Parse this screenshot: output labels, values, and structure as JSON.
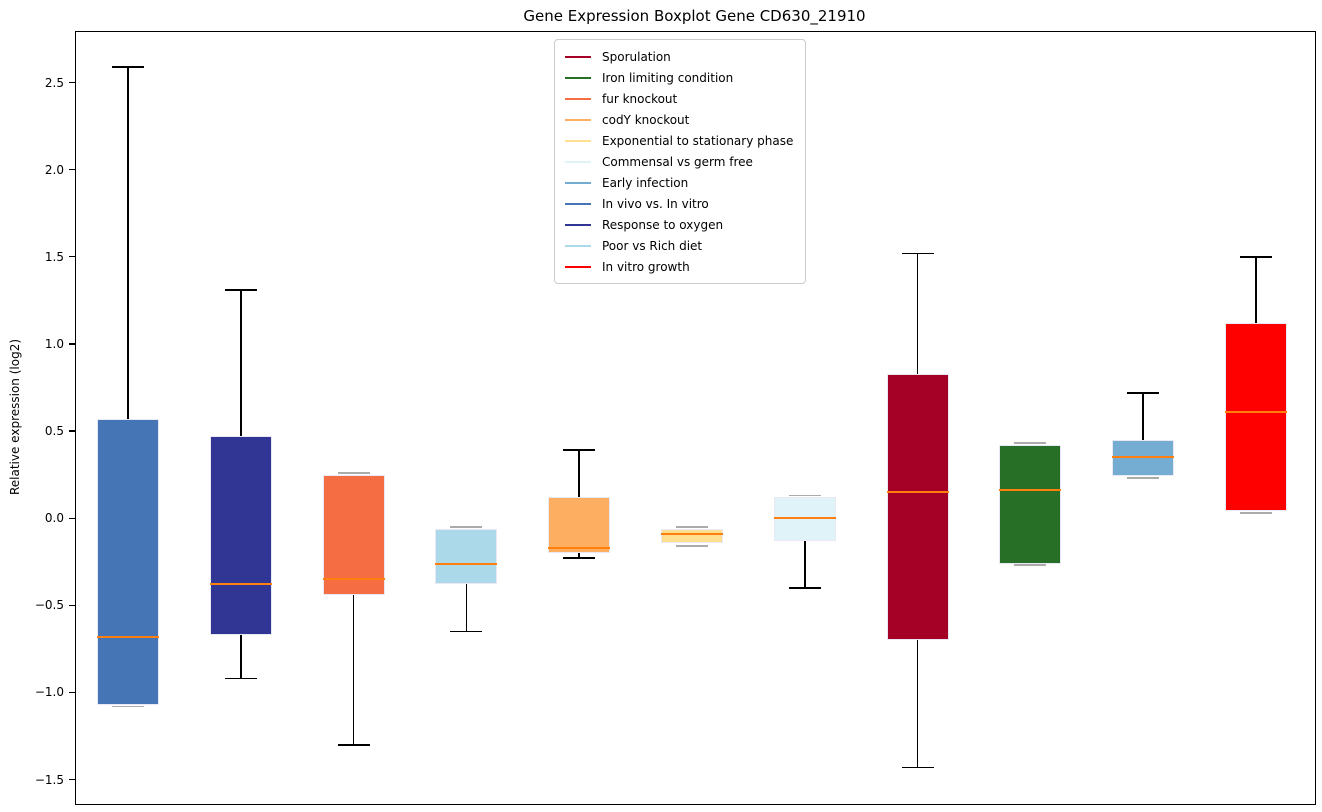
{
  "figure": {
    "title": "Gene Expression Boxplot Gene CD630_21910",
    "ylabel": "Relative expression (log2)"
  },
  "chart_data": {
    "type": "boxplot",
    "title": "Gene Expression Boxplot Gene CD630_21910",
    "xlabel": "",
    "ylabel": "Relative expression (log2)",
    "ylim": [
      -1.64,
      2.79
    ],
    "grid": false,
    "x_tick_labels": [],
    "yticks": [
      2.5,
      2.0,
      1.5,
      1.0,
      0.5,
      0.0,
      -0.5,
      -1.0,
      -1.5
    ],
    "ytick_labels": [
      "2.5",
      "2.0",
      "1.5",
      "1.0",
      "0.5",
      "0.0",
      "−0.5",
      "−1.0",
      "−1.5"
    ],
    "median_color": "#ff7f0e",
    "whisker_color": "#000000",
    "edge_cap_color": "#ababab",
    "legend_position": "upper center",
    "legend": [
      {
        "label": "Sporulation",
        "color": "#A50026"
      },
      {
        "label": "Iron limiting condition",
        "color": "#276E27"
      },
      {
        "label": "fur knockout",
        "color": "#F46D43"
      },
      {
        "label": "codY knockout",
        "color": "#FDAE61"
      },
      {
        "label": "Exponential to stationary phase",
        "color": "#FEE090"
      },
      {
        "label": "Commensal vs germ free",
        "color": "#E0F3F8"
      },
      {
        "label": "Early infection",
        "color": "#74ADD1"
      },
      {
        "label": "In vivo vs. In vitro",
        "color": "#4575B4"
      },
      {
        "label": "Response to oxygen",
        "color": "#313695"
      },
      {
        "label": "Poor vs Rich diet",
        "color": "#ABD9E9"
      },
      {
        "label": "In vitro growth",
        "color": "#FF0000"
      }
    ],
    "boxes": [
      {
        "label": "In vivo vs. In vitro",
        "color": "#4575B4",
        "whisker_low": -1.08,
        "q1": -1.07,
        "median": -0.68,
        "q3": 0.57,
        "whisker_high": 2.59
      },
      {
        "label": "Response to oxygen",
        "color": "#313695",
        "whisker_low": -0.92,
        "q1": -0.67,
        "median": -0.38,
        "q3": 0.47,
        "whisker_high": 1.31
      },
      {
        "label": "fur knockout",
        "color": "#F46D43",
        "whisker_low": -1.3,
        "q1": -0.44,
        "median": -0.35,
        "q3": 0.25,
        "whisker_high": 0.26
      },
      {
        "label": "Poor vs Rich diet",
        "color": "#ABD9E9",
        "whisker_low": -0.65,
        "q1": -0.38,
        "median": -0.26,
        "q3": -0.06,
        "whisker_high": -0.05
      },
      {
        "label": "codY knockout",
        "color": "#FDAE61",
        "whisker_low": -0.23,
        "q1": -0.2,
        "median": -0.17,
        "q3": 0.12,
        "whisker_high": 0.39
      },
      {
        "label": "Exponential to stationary phase",
        "color": "#FEE090",
        "whisker_low": -0.16,
        "q1": -0.14,
        "median": -0.09,
        "q3": -0.06,
        "whisker_high": -0.05
      },
      {
        "label": "Commensal vs germ free",
        "color": "#E0F3F8",
        "whisker_low": -0.4,
        "q1": -0.13,
        "median": 0.0,
        "q3": 0.12,
        "whisker_high": 0.13
      },
      {
        "label": "Sporulation",
        "color": "#A50026",
        "whisker_low": -1.43,
        "q1": -0.7,
        "median": 0.15,
        "q3": 0.83,
        "whisker_high": 1.52
      },
      {
        "label": "Iron limiting condition",
        "color": "#276E27",
        "whisker_low": -0.27,
        "q1": -0.26,
        "median": 0.16,
        "q3": 0.42,
        "whisker_high": 0.43
      },
      {
        "label": "Early infection",
        "color": "#74ADD1",
        "whisker_low": 0.23,
        "q1": 0.24,
        "median": 0.35,
        "q3": 0.45,
        "whisker_high": 0.72
      },
      {
        "label": "In vitro growth",
        "color": "#FF0000",
        "whisker_low": 0.03,
        "q1": 0.04,
        "median": 0.61,
        "q3": 1.12,
        "whisker_high": 1.5
      }
    ]
  }
}
